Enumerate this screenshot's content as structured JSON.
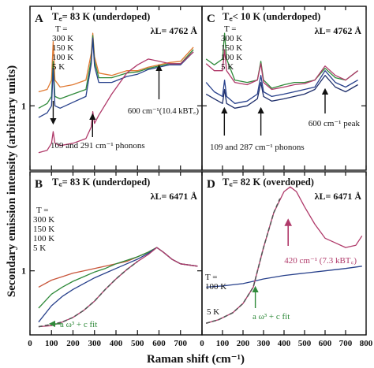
{
  "figure": {
    "ylabel": "Secondary emission intensity (arbitrary units)",
    "xlabel": "Raman shift (cm⁻¹)"
  },
  "chart_data": [
    {
      "panel": "A",
      "type": "line",
      "title": "T꜀= 83 K (underdoped)",
      "laser": "λL= 4762 Å",
      "xlim": [
        0,
        800
      ],
      "ylim": [
        0.45,
        1.85
      ],
      "ytick": 1,
      "temp_label": "T =",
      "temp_list": [
        "300 K",
        "150 K",
        "100 K",
        "5 K"
      ],
      "annotations": [
        {
          "text": "600 cm⁻¹(10.4 kBT꜀)",
          "x": 600
        },
        {
          "text": "109 and 291 cm⁻¹ phonons",
          "x": 200
        }
      ],
      "series": [
        {
          "name": "300 K",
          "color": "#e07a33",
          "x": [
            40,
            80,
            100,
            108,
            116,
            140,
            200,
            260,
            285,
            292,
            300,
            320,
            380,
            450,
            500,
            550,
            600,
            650,
            700,
            760
          ],
          "y": [
            1.12,
            1.14,
            1.22,
            1.55,
            1.22,
            1.16,
            1.18,
            1.22,
            1.45,
            1.62,
            1.42,
            1.28,
            1.26,
            1.3,
            1.3,
            1.33,
            1.35,
            1.37,
            1.38,
            1.5
          ]
        },
        {
          "name": "150 K",
          "color": "#2f8a3a",
          "x": [
            40,
            80,
            100,
            108,
            116,
            140,
            200,
            260,
            285,
            292,
            300,
            320,
            380,
            450,
            500,
            550,
            600,
            650,
            700,
            760
          ],
          "y": [
            0.98,
            1.02,
            1.08,
            1.38,
            1.08,
            1.06,
            1.1,
            1.14,
            1.4,
            1.6,
            1.38,
            1.24,
            1.24,
            1.28,
            1.29,
            1.32,
            1.34,
            1.36,
            1.36,
            1.48
          ]
        },
        {
          "name": "100 K",
          "color": "#27408b",
          "x": [
            40,
            80,
            100,
            108,
            116,
            140,
            200,
            260,
            285,
            292,
            300,
            320,
            380,
            450,
            500,
            550,
            600,
            650,
            700,
            760
          ],
          "y": [
            0.9,
            0.94,
            1.0,
            1.32,
            1.0,
            0.98,
            1.03,
            1.08,
            1.36,
            1.58,
            1.34,
            1.2,
            1.2,
            1.25,
            1.27,
            1.31,
            1.33,
            1.35,
            1.35,
            1.46
          ]
        },
        {
          "name": "5 K",
          "color": "#b03a6a",
          "x": [
            40,
            80,
            100,
            108,
            116,
            140,
            200,
            260,
            285,
            292,
            300,
            320,
            380,
            450,
            500,
            550,
            600,
            650,
            700,
            760
          ],
          "y": [
            0.6,
            0.62,
            0.68,
            0.78,
            0.68,
            0.66,
            0.68,
            0.72,
            0.82,
            0.95,
            0.85,
            0.92,
            1.1,
            1.28,
            1.35,
            1.4,
            1.38,
            1.36,
            1.36,
            1.46
          ]
        }
      ]
    },
    {
      "panel": "C",
      "type": "line",
      "title": "T꜀< 10 K (underdoped)",
      "laser": "λL= 4762 Å",
      "xlim": [
        0,
        800
      ],
      "ylim": [
        0.45,
        1.85
      ],
      "ytick": 1,
      "temp_label": "T =",
      "temp_list": [
        "300 K",
        "150 K",
        "100 K",
        "5 K"
      ],
      "annotations": [
        {
          "text": "600 cm⁻¹ peak",
          "x": 600
        },
        {
          "text": "109 and 287 cm⁻¹ phonons",
          "x": 200
        }
      ],
      "series": [
        {
          "name": "300 K",
          "color": "#2f8a3a",
          "x": [
            20,
            60,
            100,
            110,
            120,
            160,
            220,
            270,
            287,
            300,
            340,
            400,
            450,
            500,
            550,
            600,
            650,
            700,
            760
          ],
          "y": [
            1.4,
            1.35,
            1.4,
            1.62,
            1.4,
            1.22,
            1.2,
            1.22,
            1.38,
            1.22,
            1.15,
            1.18,
            1.2,
            1.2,
            1.22,
            1.32,
            1.24,
            1.22,
            1.3
          ]
        },
        {
          "name": "150 K",
          "color": "#b03a6a",
          "x": [
            20,
            60,
            100,
            110,
            120,
            160,
            220,
            270,
            287,
            300,
            340,
            400,
            450,
            500,
            550,
            600,
            650,
            700,
            760
          ],
          "y": [
            1.36,
            1.3,
            1.3,
            1.48,
            1.3,
            1.2,
            1.18,
            1.22,
            1.36,
            1.2,
            1.14,
            1.16,
            1.18,
            1.19,
            1.22,
            1.34,
            1.26,
            1.22,
            1.3
          ]
        },
        {
          "name": "100 K",
          "color": "#27408b",
          "x": [
            20,
            60,
            100,
            110,
            120,
            160,
            220,
            270,
            287,
            300,
            340,
            400,
            450,
            500,
            550,
            600,
            650,
            700,
            760
          ],
          "y": [
            1.2,
            1.12,
            1.08,
            1.22,
            1.08,
            1.02,
            1.04,
            1.1,
            1.26,
            1.12,
            1.08,
            1.1,
            1.12,
            1.14,
            1.16,
            1.3,
            1.2,
            1.16,
            1.22
          ]
        },
        {
          "name": "5 K",
          "color": "#1f2f6b",
          "x": [
            20,
            60,
            100,
            110,
            120,
            160,
            220,
            270,
            287,
            300,
            340,
            400,
            450,
            500,
            550,
            600,
            650,
            700,
            760
          ],
          "y": [
            1.1,
            1.06,
            1.02,
            1.14,
            1.02,
            0.98,
            1.0,
            1.06,
            1.2,
            1.08,
            1.04,
            1.06,
            1.08,
            1.1,
            1.14,
            1.26,
            1.16,
            1.12,
            1.18
          ]
        }
      ]
    },
    {
      "panel": "B",
      "type": "line",
      "title": "T꜀= 83 K (underdoped)",
      "laser": "λL= 6471 Å",
      "xlim": [
        0,
        800
      ],
      "ylim": [
        0.45,
        1.85
      ],
      "ytick": 1,
      "temp_label": "T =",
      "temp_list": [
        "300 K",
        "150 K",
        "100 K",
        "5 K"
      ],
      "annotations": [
        {
          "text": "a ω³ + c   fit",
          "x": 100
        }
      ],
      "series": [
        {
          "name": "300 K",
          "color": "#c8553a",
          "x": [
            40,
            100,
            150,
            200,
            250,
            300,
            350,
            400,
            450,
            500,
            550,
            590,
            620,
            660,
            700,
            740,
            780
          ],
          "y": [
            0.86,
            0.92,
            0.95,
            0.98,
            1.0,
            1.02,
            1.04,
            1.06,
            1.08,
            1.12,
            1.16,
            1.2,
            1.16,
            1.1,
            1.06,
            1.05,
            1.04
          ]
        },
        {
          "name": "150 K",
          "color": "#2f8a3a",
          "x": [
            40,
            100,
            150,
            200,
            250,
            300,
            350,
            400,
            450,
            500,
            550,
            590,
            620,
            660,
            700,
            740,
            780
          ],
          "y": [
            0.68,
            0.8,
            0.86,
            0.91,
            0.95,
            0.99,
            1.02,
            1.06,
            1.09,
            1.12,
            1.16,
            1.2,
            1.16,
            1.1,
            1.06,
            1.05,
            1.04
          ]
        },
        {
          "name": "100 K",
          "color": "#27408b",
          "x": [
            40,
            100,
            150,
            200,
            250,
            300,
            350,
            400,
            450,
            500,
            550,
            590,
            620,
            660,
            700,
            740,
            780
          ],
          "y": [
            0.56,
            0.7,
            0.78,
            0.84,
            0.89,
            0.94,
            0.98,
            1.02,
            1.06,
            1.1,
            1.15,
            1.2,
            1.16,
            1.1,
            1.06,
            1.05,
            1.04
          ]
        },
        {
          "name": "5 K",
          "color": "#b03a6a",
          "x": [
            40,
            100,
            150,
            200,
            250,
            300,
            350,
            400,
            450,
            500,
            550,
            590,
            620,
            660,
            700,
            740,
            780
          ],
          "y": [
            0.52,
            0.53,
            0.56,
            0.6,
            0.66,
            0.74,
            0.84,
            0.93,
            1.01,
            1.08,
            1.14,
            1.2,
            1.16,
            1.1,
            1.06,
            1.05,
            1.04
          ]
        },
        {
          "name": "fit",
          "color": "#555555",
          "dashed": true,
          "x": [
            40,
            100,
            150,
            200,
            250,
            300,
            350,
            400,
            450,
            500
          ],
          "y": [
            0.52,
            0.54,
            0.56,
            0.6,
            0.66,
            0.74,
            0.84,
            0.93,
            1.01,
            1.08
          ]
        }
      ]
    },
    {
      "panel": "D",
      "type": "line",
      "title": "T꜀= 82 K (overdoped)",
      "laser": "λL= 6471 Å",
      "xlim": [
        0,
        800
      ],
      "ylim": [
        0.45,
        1.85
      ],
      "ytick": null,
      "temp_label": "T =",
      "temp_list": [
        "100 K"
      ],
      "annotations": [
        {
          "text": "420 cm⁻¹ (7.3 kBT꜀)",
          "x": 420
        },
        {
          "text": "a ω³ + c   fit",
          "x": 260
        },
        {
          "text": "5 K",
          "x": 60
        }
      ],
      "series": [
        {
          "name": "100 K",
          "color": "#27408b",
          "x": [
            20,
            100,
            200,
            250,
            300,
            400,
            500,
            600,
            700,
            780
          ],
          "y": [
            0.86,
            0.87,
            0.89,
            0.91,
            0.93,
            0.96,
            0.98,
            1.0,
            1.02,
            1.04
          ]
        },
        {
          "name": "5 K",
          "color": "#b03a6a",
          "x": [
            20,
            80,
            150,
            200,
            250,
            300,
            350,
            400,
            430,
            460,
            500,
            550,
            600,
            650,
            700,
            750,
            780
          ],
          "y": [
            0.55,
            0.58,
            0.64,
            0.72,
            0.86,
            1.2,
            1.5,
            1.68,
            1.72,
            1.68,
            1.55,
            1.4,
            1.28,
            1.24,
            1.2,
            1.22,
            1.3
          ]
        },
        {
          "name": "fit",
          "color": "#555555",
          "dashed": true,
          "x": [
            20,
            80,
            150,
            200,
            250,
            300,
            350,
            380
          ],
          "y": [
            0.55,
            0.58,
            0.64,
            0.72,
            0.86,
            1.2,
            1.5,
            1.62
          ]
        }
      ]
    }
  ]
}
